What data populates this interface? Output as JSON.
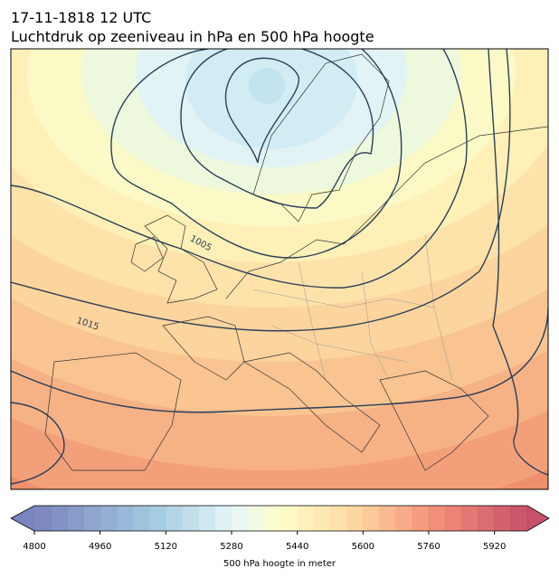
{
  "header": {
    "title": "17-11-1818 12 UTC",
    "subtitle": "Luchtdruk op zeeniveau in hPa en 500 hPa hoogte"
  },
  "map": {
    "contour_labels": [
      "1005",
      "1015"
    ]
  },
  "colorbar": {
    "label": "500 hPa hoogte in meter",
    "lim": [
      4800,
      6000
    ],
    "step": 40,
    "ticks": [
      4800,
      4960,
      5120,
      5280,
      5440,
      5600,
      5760,
      5920
    ]
  }
}
